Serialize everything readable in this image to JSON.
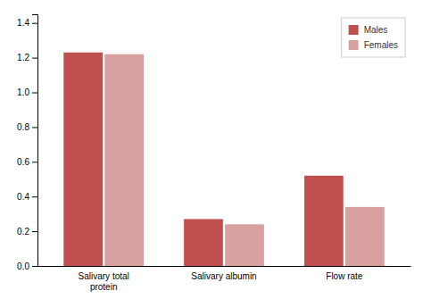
{
  "chart_data": {
    "type": "bar",
    "categories": [
      "Salivary total\nprotein",
      "Salivary albumin",
      "Flow rate"
    ],
    "series": [
      {
        "name": "Males",
        "color": "#c0504d",
        "values": [
          1.23,
          0.27,
          0.52
        ]
      },
      {
        "name": "Females",
        "color": "#d9a0a0",
        "values": [
          1.22,
          0.24,
          0.34
        ]
      }
    ],
    "ylim": [
      0,
      1.45
    ],
    "yticks": [
      {
        "value": 0,
        "label": "0.0"
      },
      0.2,
      0.4,
      0.6,
      0.8,
      {
        "value": 1.0,
        "label": "1.0"
      },
      1.2,
      1.4
    ],
    "grid": false,
    "legend": "upper right"
  }
}
